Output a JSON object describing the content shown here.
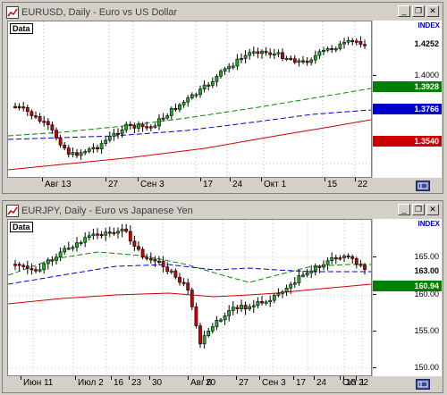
{
  "colors": {
    "bull": "#22aa22",
    "bear": "#cc0000",
    "ma_green": "#008800",
    "ma_blue": "#0000cc",
    "ma_red": "#cc0000",
    "highlight_green": "#008000",
    "highlight_blue": "#0000cc",
    "highlight_red": "#cc0000"
  },
  "chart1": {
    "window_title": "EURUSD, Daily - Euro vs US Dollar",
    "data_label": "Data",
    "index_label": "INDEX",
    "prices": [
      {
        "label": "1.4252",
        "style": "plain"
      },
      {
        "label": "1.4000",
        "style": "tick"
      },
      {
        "label": "1.3928",
        "style": "green"
      },
      {
        "label": "1.3766",
        "style": "blue"
      },
      {
        "label": "1.3540",
        "style": "red"
      }
    ],
    "dates": [
      "Авг 13",
      "27",
      "Сен 3",
      "17",
      "24",
      "Окт 1",
      "15",
      "22"
    ]
  },
  "chart2": {
    "window_title": "EURJPY, Daily - Euro vs Japanese Yen",
    "data_label": "Data",
    "index_label": "INDEX",
    "prices": [
      {
        "label": "165.00",
        "style": "tick"
      },
      {
        "label": "163.00",
        "style": "plain"
      },
      {
        "label": "160.94",
        "style": "green"
      },
      {
        "label": "160.00",
        "style": "tick"
      },
      {
        "label": "155.00",
        "style": "tick"
      },
      {
        "label": "150.00",
        "style": "tick"
      }
    ],
    "dates": [
      "Июн 11",
      "Июл 2",
      "16",
      "23",
      "30",
      "Авг 6",
      "20",
      "27",
      "Сен 3",
      "17",
      "24",
      "Окт 1",
      "15",
      "22"
    ]
  }
}
